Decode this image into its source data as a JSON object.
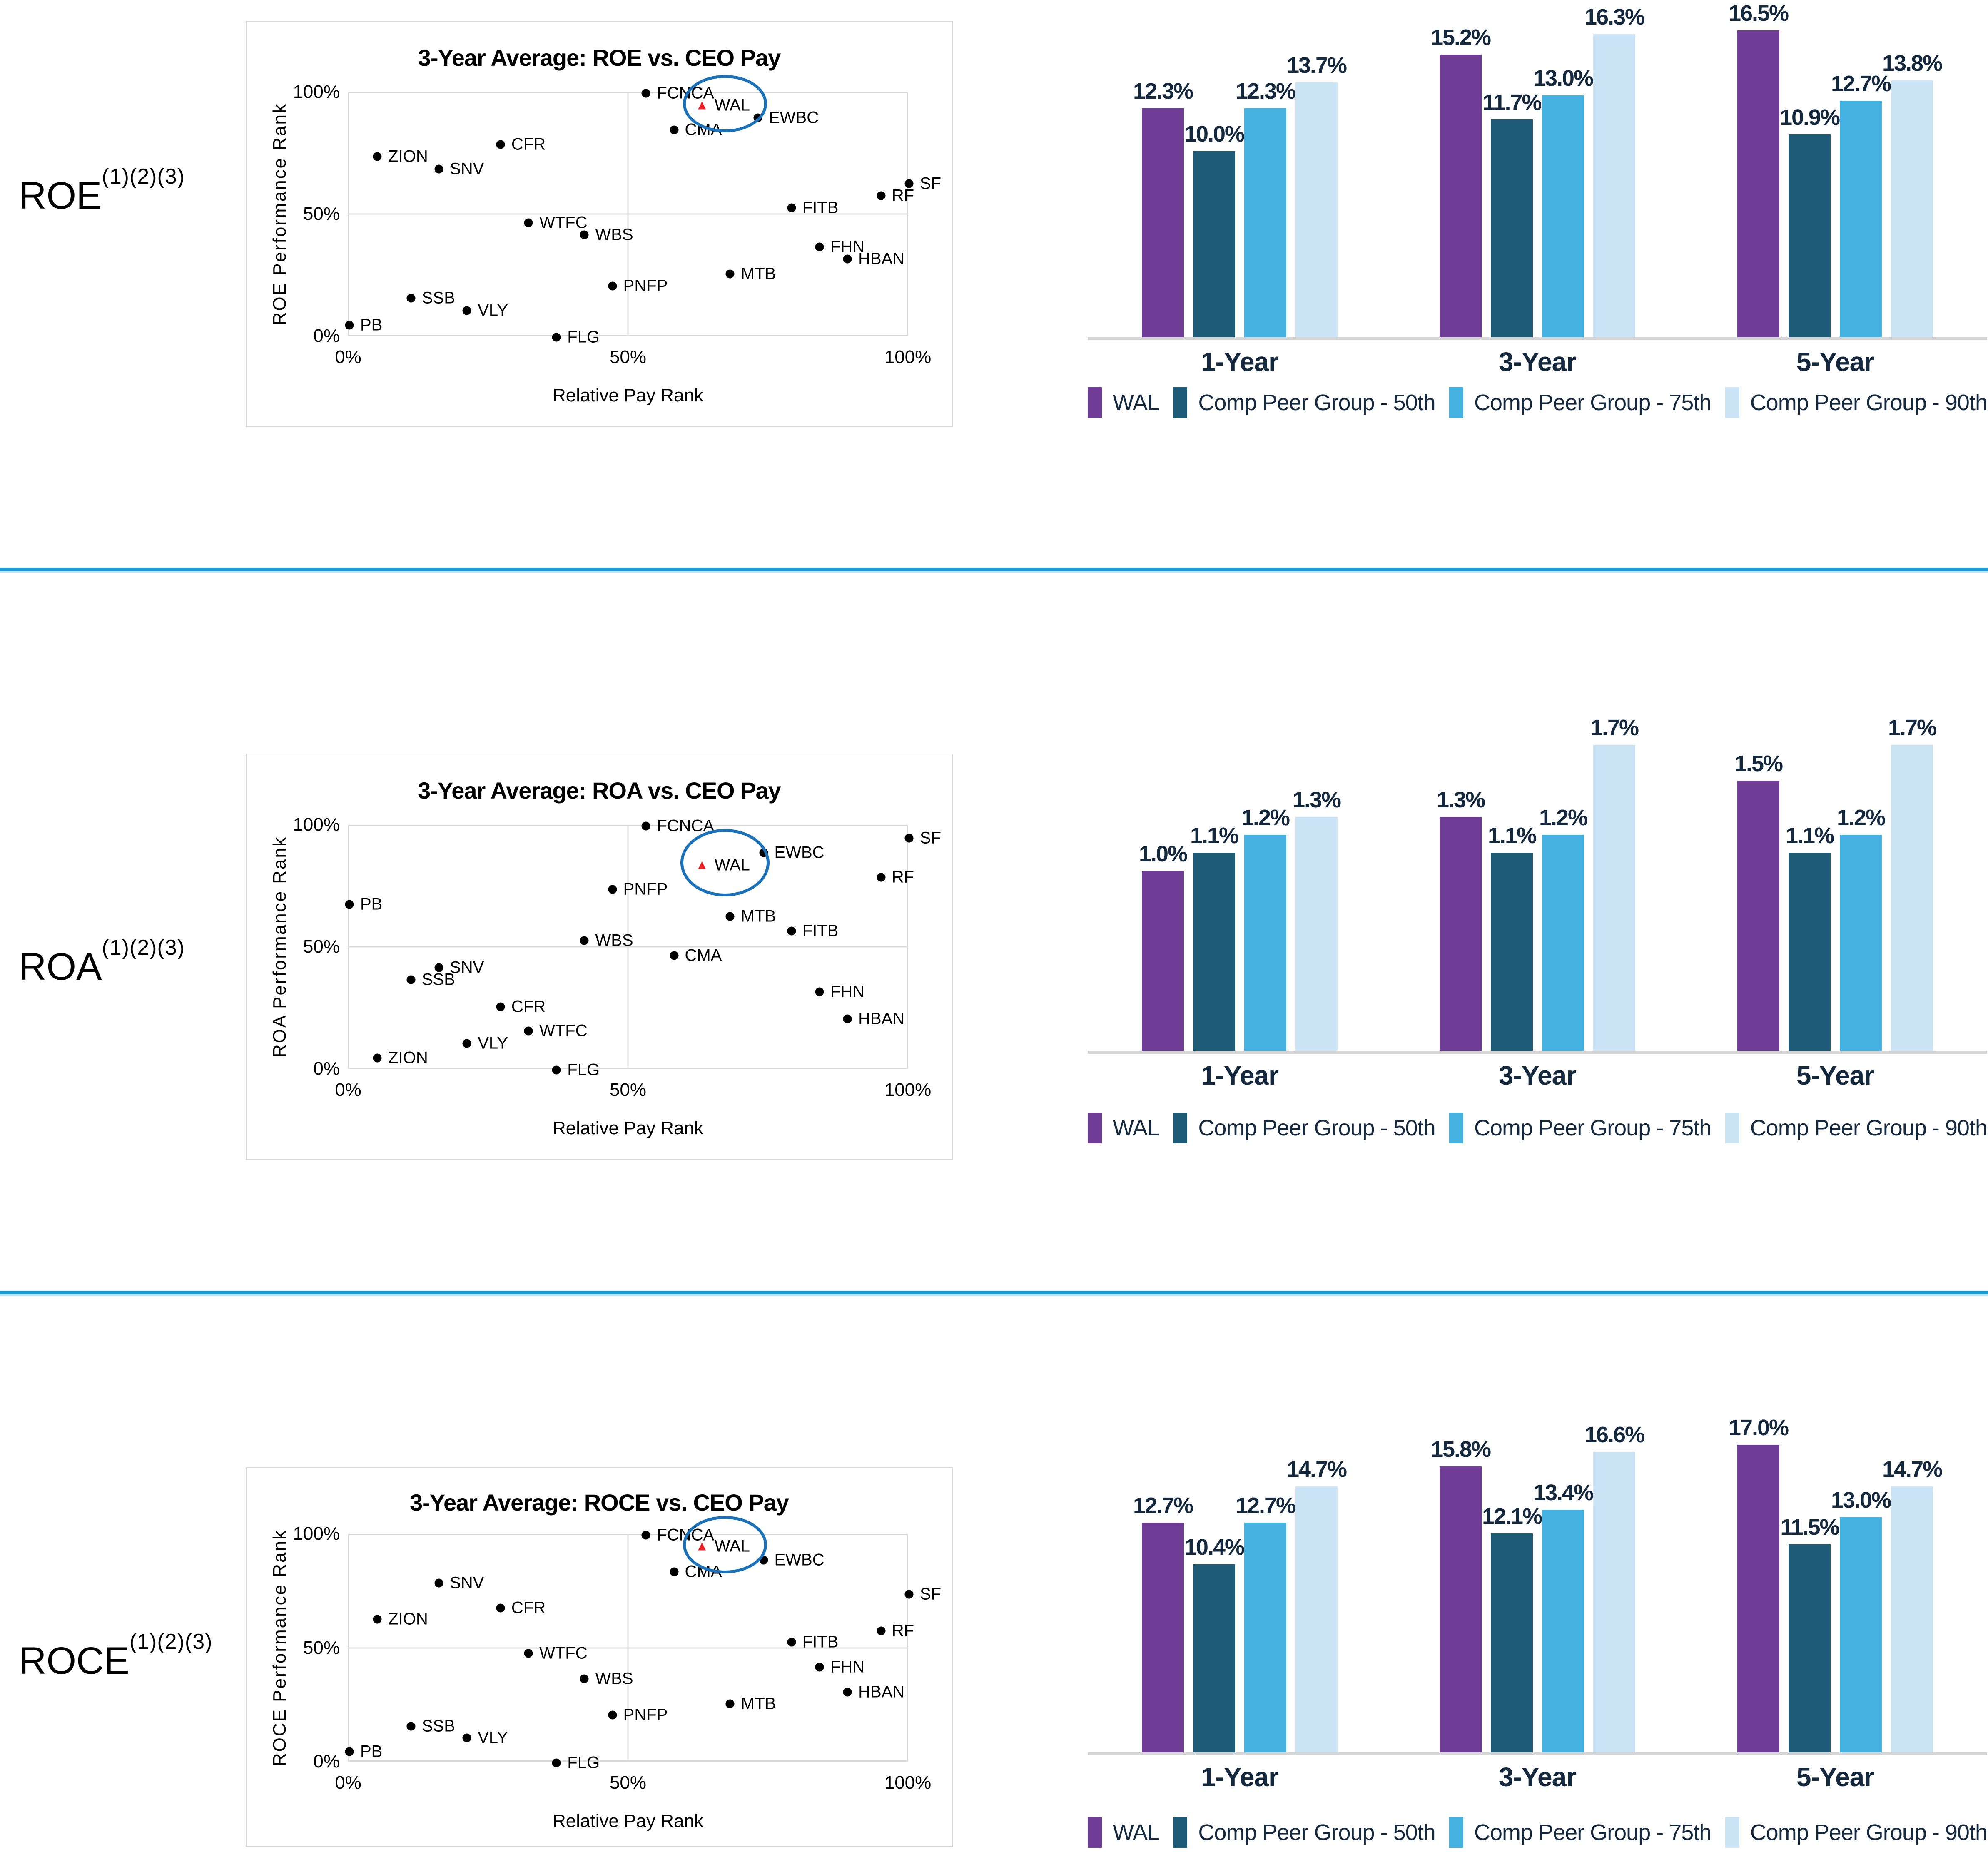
{
  "page": {
    "background": "#FFFFFF",
    "divider_color": "#1F9BD4",
    "label_text_color": "#14293E"
  },
  "sections": [
    {
      "label": "ROE",
      "superscript": "(1)(2)(3)",
      "scatter_index": 0,
      "bar_index": 1
    },
    {
      "label": "ROA",
      "superscript": "(1)(2)(3)",
      "scatter_index": 2,
      "bar_index": 3
    },
    {
      "label": "ROCE",
      "superscript": "(1)(2)(3)",
      "scatter_index": 4,
      "bar_index": 5
    }
  ],
  "chart_data": [
    {
      "id": "roe-scatter",
      "type": "scatter",
      "title": "3-Year Average: ROE vs. CEO Pay",
      "xlabel": "Relative Pay Rank",
      "ylabel": "ROE Performance Rank",
      "xlim": [
        0,
        100
      ],
      "ylim": [
        0,
        100
      ],
      "grid": true,
      "x_ticks": [
        {
          "value": 0,
          "label": "0%"
        },
        {
          "value": 50,
          "label": "50%"
        },
        {
          "value": 100,
          "label": "100%"
        }
      ],
      "y_ticks": [
        {
          "value": 0,
          "label": "0%"
        },
        {
          "value": 50,
          "label": "50%"
        },
        {
          "value": 100,
          "label": "100%"
        }
      ],
      "points": [
        {
          "label": "FCNCA",
          "x": 53,
          "y": 100
        },
        {
          "label": "CMA",
          "x": 58,
          "y": 85
        },
        {
          "label": "EWBC",
          "x": 73,
          "y": 90
        },
        {
          "label": "CFR",
          "x": 27,
          "y": 79
        },
        {
          "label": "ZION",
          "x": 5,
          "y": 74
        },
        {
          "label": "SNV",
          "x": 16,
          "y": 69
        },
        {
          "label": "SF",
          "x": 100,
          "y": 63
        },
        {
          "label": "RF",
          "x": 95,
          "y": 58
        },
        {
          "label": "FITB",
          "x": 79,
          "y": 53
        },
        {
          "label": "WTFC",
          "x": 32,
          "y": 47
        },
        {
          "label": "WBS",
          "x": 42,
          "y": 42
        },
        {
          "label": "FHN",
          "x": 84,
          "y": 37
        },
        {
          "label": "HBAN",
          "x": 89,
          "y": 32
        },
        {
          "label": "MTB",
          "x": 68,
          "y": 26
        },
        {
          "label": "PNFP",
          "x": 47,
          "y": 21
        },
        {
          "label": "SSB",
          "x": 11,
          "y": 16
        },
        {
          "label": "VLY",
          "x": 21,
          "y": 11
        },
        {
          "label": "PB",
          "x": 0,
          "y": 5
        },
        {
          "label": "FLG",
          "x": 37,
          "y": 0
        }
      ],
      "highlight": {
        "label": "WAL",
        "x": 63,
        "y": 95,
        "marker": "red-triangle",
        "marker_color": "#EC2227",
        "ellipse": {
          "dx": 55,
          "dy": -4,
          "rx": 94,
          "ry": 62,
          "color": "#1C72B8"
        }
      }
    },
    {
      "id": "roe-bars",
      "type": "bar",
      "categories": [
        "1-Year",
        "3-Year",
        "5-Year"
      ],
      "series": [
        {
          "name": "WAL",
          "color": "#6F3C96",
          "values": [
            12.3,
            15.2,
            16.5
          ]
        },
        {
          "name": "Comp Peer Group - 50th",
          "color": "#1E5B77",
          "values": [
            10.0,
            11.7,
            10.9
          ]
        },
        {
          "name": "Comp Peer Group - 75th",
          "color": "#45B1E1",
          "values": [
            12.3,
            13.0,
            12.7
          ]
        },
        {
          "name": "Comp Peer Group - 90th",
          "color": "#CBE5F6",
          "values": [
            13.7,
            16.3,
            13.8
          ]
        }
      ],
      "ylim": [
        0,
        17.9
      ],
      "value_suffix": "%",
      "value_decimals": 1,
      "grid": false,
      "legend_position": "bottom"
    },
    {
      "id": "roa-scatter",
      "type": "scatter",
      "title": "3-Year Average: ROA vs. CEO Pay",
      "xlabel": "Relative Pay Rank",
      "ylabel": "ROA Performance Rank",
      "xlim": [
        0,
        100
      ],
      "ylim": [
        0,
        100
      ],
      "grid": true,
      "x_ticks": [
        {
          "value": 0,
          "label": "0%"
        },
        {
          "value": 50,
          "label": "50%"
        },
        {
          "value": 100,
          "label": "100%"
        }
      ],
      "y_ticks": [
        {
          "value": 0,
          "label": "0%"
        },
        {
          "value": 50,
          "label": "50%"
        },
        {
          "value": 100,
          "label": "100%"
        }
      ],
      "points": [
        {
          "label": "FCNCA",
          "x": 53,
          "y": 100
        },
        {
          "label": "SF",
          "x": 100,
          "y": 95
        },
        {
          "label": "EWBC",
          "x": 74,
          "y": 89
        },
        {
          "label": "RF",
          "x": 95,
          "y": 79
        },
        {
          "label": "PNFP",
          "x": 47,
          "y": 74
        },
        {
          "label": "PB",
          "x": 0,
          "y": 68
        },
        {
          "label": "MTB",
          "x": 68,
          "y": 63
        },
        {
          "label": "FITB",
          "x": 79,
          "y": 57
        },
        {
          "label": "WBS",
          "x": 42,
          "y": 53
        },
        {
          "label": "CMA",
          "x": 58,
          "y": 47
        },
        {
          "label": "SNV",
          "x": 16,
          "y": 42
        },
        {
          "label": "SSB",
          "x": 11,
          "y": 37
        },
        {
          "label": "FHN",
          "x": 84,
          "y": 32
        },
        {
          "label": "CFR",
          "x": 27,
          "y": 26
        },
        {
          "label": "HBAN",
          "x": 89,
          "y": 21
        },
        {
          "label": "WTFC",
          "x": 32,
          "y": 16
        },
        {
          "label": "VLY",
          "x": 21,
          "y": 11
        },
        {
          "label": "ZION",
          "x": 5,
          "y": 5
        },
        {
          "label": "FLG",
          "x": 37,
          "y": 0
        }
      ],
      "highlight": {
        "label": "WAL",
        "x": 63,
        "y": 84,
        "marker": "red-triangle",
        "marker_color": "#EC2227",
        "ellipse": {
          "dx": 55,
          "dy": -6,
          "rx": 100,
          "ry": 74,
          "color": "#1C72B8"
        }
      }
    },
    {
      "id": "roa-bars",
      "type": "bar",
      "categories": [
        "1-Year",
        "3-Year",
        "5-Year"
      ],
      "series": [
        {
          "name": "WAL",
          "color": "#6F3C96",
          "values": [
            1.0,
            1.3,
            1.5
          ]
        },
        {
          "name": "Comp Peer Group - 50th",
          "color": "#1E5B77",
          "values": [
            1.1,
            1.1,
            1.1
          ]
        },
        {
          "name": "Comp Peer Group - 75th",
          "color": "#45B1E1",
          "values": [
            1.2,
            1.2,
            1.2
          ]
        },
        {
          "name": "Comp Peer Group - 90th",
          "color": "#CBE5F6",
          "values": [
            1.3,
            1.7,
            1.7
          ]
        }
      ],
      "ylim": [
        0,
        1.85
      ],
      "value_suffix": "%",
      "value_decimals": 1,
      "grid": false,
      "legend_position": "bottom"
    },
    {
      "id": "roce-scatter",
      "type": "scatter",
      "title": "3-Year Average: ROCE vs. CEO Pay",
      "xlabel": "Relative Pay Rank",
      "ylabel": "ROCE Performance Rank",
      "xlim": [
        0,
        100
      ],
      "ylim": [
        0,
        100
      ],
      "grid": true,
      "x_ticks": [
        {
          "value": 0,
          "label": "0%"
        },
        {
          "value": 50,
          "label": "50%"
        },
        {
          "value": 100,
          "label": "100%"
        }
      ],
      "y_ticks": [
        {
          "value": 0,
          "label": "0%"
        },
        {
          "value": 50,
          "label": "50%"
        },
        {
          "value": 100,
          "label": "100%"
        }
      ],
      "points": [
        {
          "label": "FCNCA",
          "x": 53,
          "y": 100
        },
        {
          "label": "EWBC",
          "x": 74,
          "y": 89
        },
        {
          "label": "CMA",
          "x": 58,
          "y": 84
        },
        {
          "label": "SNV",
          "x": 16,
          "y": 79
        },
        {
          "label": "SF",
          "x": 100,
          "y": 74
        },
        {
          "label": "CFR",
          "x": 27,
          "y": 68
        },
        {
          "label": "ZION",
          "x": 5,
          "y": 63
        },
        {
          "label": "RF",
          "x": 95,
          "y": 58
        },
        {
          "label": "FITB",
          "x": 79,
          "y": 53
        },
        {
          "label": "WTFC",
          "x": 32,
          "y": 48
        },
        {
          "label": "FHN",
          "x": 84,
          "y": 42
        },
        {
          "label": "WBS",
          "x": 42,
          "y": 37
        },
        {
          "label": "HBAN",
          "x": 89,
          "y": 31
        },
        {
          "label": "MTB",
          "x": 68,
          "y": 26
        },
        {
          "label": "PNFP",
          "x": 47,
          "y": 21
        },
        {
          "label": "SSB",
          "x": 11,
          "y": 16
        },
        {
          "label": "VLY",
          "x": 21,
          "y": 11
        },
        {
          "label": "PB",
          "x": 0,
          "y": 5
        },
        {
          "label": "FLG",
          "x": 37,
          "y": 0
        }
      ],
      "highlight": {
        "label": "WAL",
        "x": 63,
        "y": 95,
        "marker": "red-triangle",
        "marker_color": "#EC2227",
        "ellipse": {
          "dx": 55,
          "dy": -4,
          "rx": 94,
          "ry": 62,
          "color": "#1C72B8"
        }
      }
    },
    {
      "id": "roce-bars",
      "type": "bar",
      "categories": [
        "1-Year",
        "3-Year",
        "5-Year"
      ],
      "series": [
        {
          "name": "WAL",
          "color": "#6F3C96",
          "values": [
            12.7,
            15.8,
            17.0
          ]
        },
        {
          "name": "Comp Peer Group - 50th",
          "color": "#1E5B77",
          "values": [
            10.4,
            12.1,
            11.5
          ]
        },
        {
          "name": "Comp Peer Group - 75th",
          "color": "#45B1E1",
          "values": [
            12.7,
            13.4,
            13.0
          ]
        },
        {
          "name": "Comp Peer Group - 90th",
          "color": "#CBE5F6",
          "values": [
            14.7,
            16.6,
            14.7
          ]
        }
      ],
      "ylim": [
        0,
        18.4
      ],
      "value_suffix": "%",
      "value_decimals": 1,
      "grid": false,
      "legend_position": "bottom"
    }
  ]
}
